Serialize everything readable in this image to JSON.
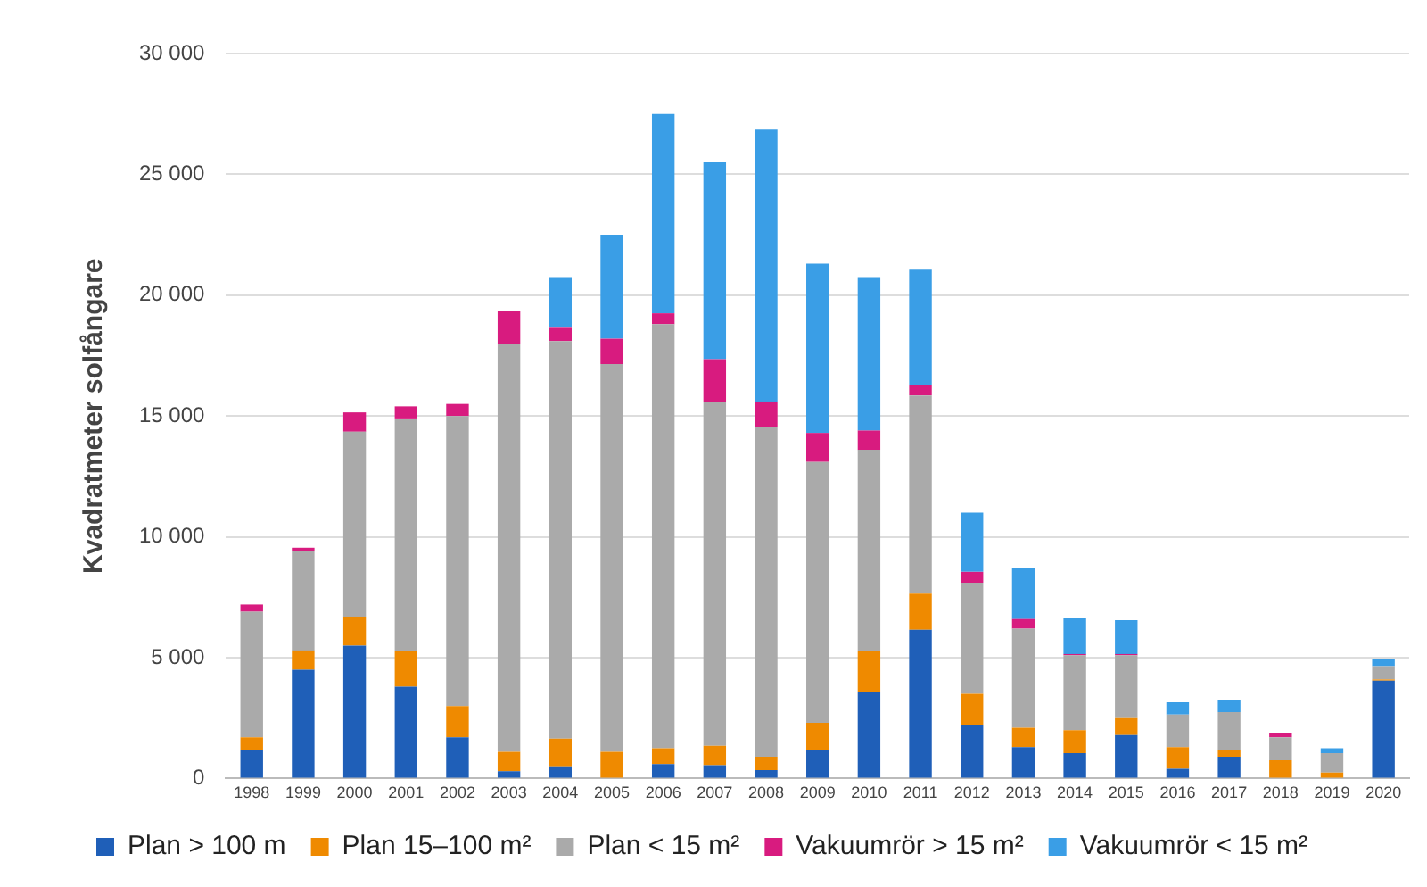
{
  "chart_data": {
    "type": "bar",
    "stacked": true,
    "ylabel": "Kvadratmeter solfångare",
    "categories": [
      "1998",
      "1999",
      "2000",
      "2001",
      "2002",
      "2003",
      "2004",
      "2005",
      "2006",
      "2007",
      "2008",
      "2009",
      "2010",
      "2011",
      "2012",
      "2013",
      "2014",
      "2015",
      "2016",
      "2017",
      "2018",
      "2019",
      "2020"
    ],
    "series": [
      {
        "name": "Plan > 100 m",
        "color": "#1f5fb8",
        "values": [
          1200,
          4500,
          5500,
          3800,
          1700,
          300,
          500,
          0,
          600,
          550,
          350,
          1200,
          3600,
          6150,
          2200,
          1300,
          1050,
          1800,
          400,
          900,
          0,
          0,
          4050
        ]
      },
      {
        "name": "Plan 15–100 m²",
        "color": "#ef8a00",
        "values": [
          500,
          800,
          1200,
          1500,
          1300,
          800,
          1150,
          1100,
          650,
          800,
          550,
          1100,
          1700,
          1500,
          1300,
          800,
          950,
          700,
          900,
          300,
          750,
          250,
          50
        ]
      },
      {
        "name": "Plan < 15 m²",
        "color": "#aaaaaa",
        "values": [
          5200,
          4100,
          7650,
          9600,
          12000,
          16900,
          16450,
          16050,
          17550,
          14250,
          13650,
          10800,
          8300,
          8200,
          4600,
          4100,
          3100,
          2600,
          1350,
          1550,
          950,
          800,
          550
        ]
      },
      {
        "name": "Vakuumrör > 15 m²",
        "color": "#d81b7f",
        "values": [
          300,
          150,
          800,
          500,
          500,
          1350,
          550,
          1050,
          450,
          1750,
          1050,
          1200,
          800,
          450,
          450,
          400,
          50,
          50,
          0,
          0,
          200,
          0,
          0
        ]
      },
      {
        "name": "Vakuumrör < 15 m²",
        "color": "#3a9ee6",
        "values": [
          0,
          0,
          0,
          0,
          0,
          0,
          2100,
          4300,
          8250,
          8150,
          11250,
          7000,
          6350,
          4750,
          2450,
          2100,
          1500,
          1400,
          500,
          500,
          0,
          200,
          300
        ]
      }
    ],
    "ylim": [
      0,
      30000
    ],
    "yticks": [
      {
        "value": 0,
        "label": "0"
      },
      {
        "value": 5000,
        "label": "5 000"
      },
      {
        "value": 10000,
        "label": "10 000"
      },
      {
        "value": 15000,
        "label": "15 000"
      },
      {
        "value": 20000,
        "label": "20 000"
      },
      {
        "value": 25000,
        "label": "25 000"
      },
      {
        "value": 30000,
        "label": "30 000"
      }
    ],
    "grid": "y",
    "legend": "bottom"
  }
}
